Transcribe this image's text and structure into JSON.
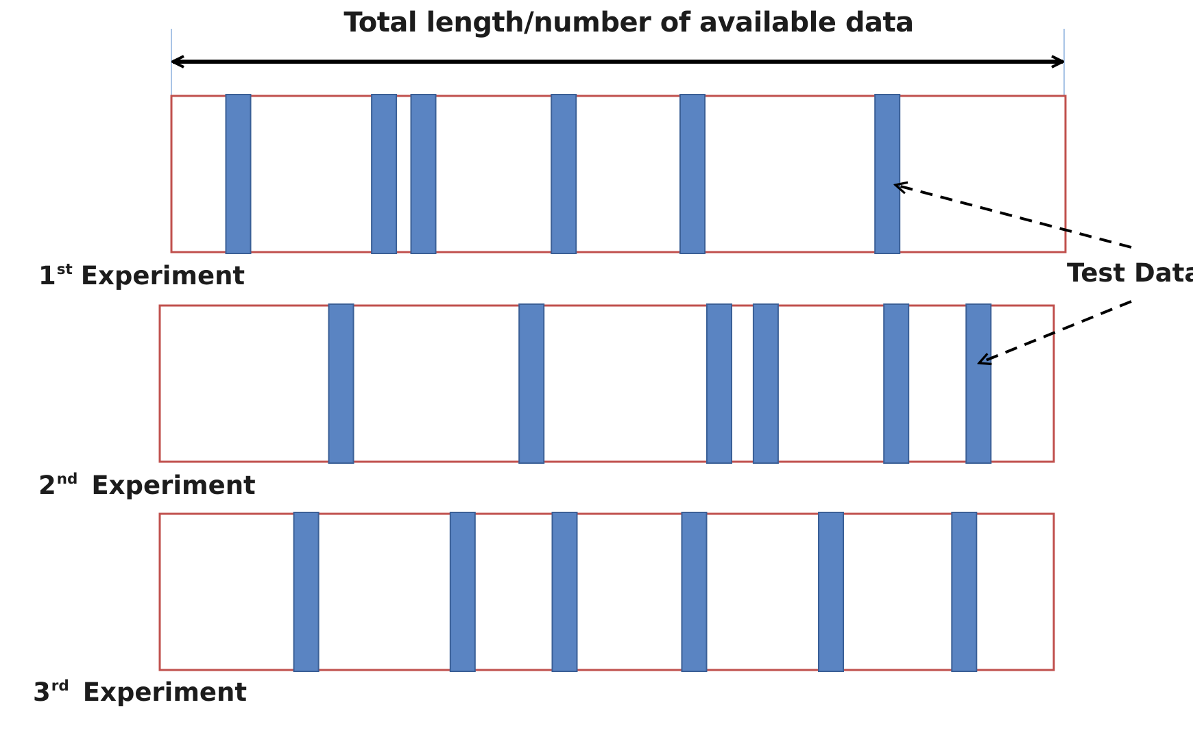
{
  "title": "Total length/number  of available data",
  "test_label": "Test Data",
  "colors": {
    "strip_border": "#c0504d",
    "test_block_fill": "#5a84c2",
    "test_block_stroke": "#3a5f96",
    "arrow": "#000000",
    "tick": "#a9c4e6"
  },
  "experiments": [
    {
      "num": "1",
      "suffix": "st",
      "word": "Experiment",
      "test_positions": [
        0.061,
        0.224,
        0.268,
        0.425,
        0.569,
        0.787
      ]
    },
    {
      "num": "2",
      "suffix": "nd",
      "word": "Experiment",
      "test_positions": [
        0.189,
        0.402,
        0.612,
        0.664,
        0.81,
        0.902
      ]
    },
    {
      "num": "3",
      "suffix": "rd",
      "word": "Experiment",
      "test_positions": [
        0.15,
        0.325,
        0.439,
        0.584,
        0.737,
        0.886
      ]
    }
  ]
}
